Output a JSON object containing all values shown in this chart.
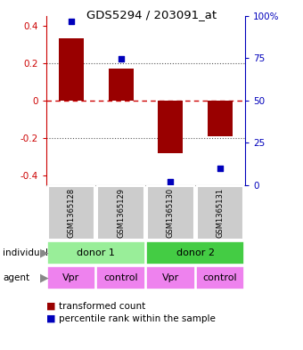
{
  "title": "GDS5294 / 203091_at",
  "bar_values": [
    0.33,
    0.17,
    -0.28,
    -0.19
  ],
  "percentile_values": [
    97,
    75,
    2,
    10
  ],
  "samples": [
    "GSM1365128",
    "GSM1365129",
    "GSM1365130",
    "GSM1365131"
  ],
  "individual_labels": [
    [
      "donor 1",
      0,
      2
    ],
    [
      "donor 2",
      2,
      4
    ]
  ],
  "agent_labels": [
    [
      "Vpr",
      0,
      1,
      "#ee82ee"
    ],
    [
      "control",
      1,
      2,
      "#ee82ee"
    ],
    [
      "Vpr",
      2,
      3,
      "#ee82ee"
    ],
    [
      "control",
      3,
      4,
      "#ee82ee"
    ]
  ],
  "donor1_color": "#99ee99",
  "donor2_color": "#44cc44",
  "bar_color": "#990000",
  "dot_color": "#0000bb",
  "ylim": [
    -0.45,
    0.45
  ],
  "y2_ticks": [
    0,
    25,
    50,
    75,
    100
  ],
  "y2_labels": [
    "0",
    "25",
    "50",
    "75",
    "100%"
  ],
  "yticks": [
    -0.4,
    -0.2,
    0.0,
    0.2,
    0.4
  ],
  "hline_color": "#cc0000",
  "dotted_color": "#555555",
  "bar_width": 0.5
}
